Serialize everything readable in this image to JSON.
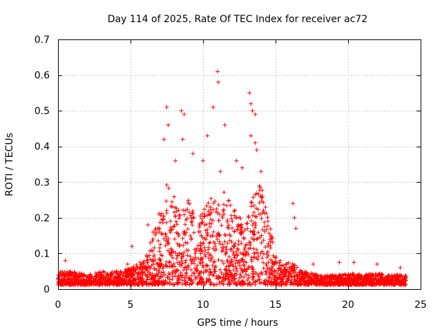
{
  "chart_data": {
    "type": "scatter",
    "title": "Day 114 of 2025, Rate Of TEC Index for receiver ac72",
    "xlabel": "GPS time / hours",
    "ylabel": "ROTI / TECUs",
    "xlim": [
      0,
      25
    ],
    "ylim": [
      0,
      0.7
    ],
    "x_ticks": [
      "0",
      "5",
      "10",
      "15",
      "20",
      "25"
    ],
    "y_ticks": [
      "0",
      "0.1",
      "0.2",
      "0.3",
      "0.4",
      "0.5",
      "0.6",
      "0.7"
    ],
    "x_tick_values": [
      0,
      5,
      10,
      15,
      20,
      25
    ],
    "y_tick_values": [
      0,
      0.1,
      0.2,
      0.3,
      0.4,
      0.5,
      0.6,
      0.7
    ],
    "grid": true,
    "marker": "+",
    "color": "#ff0000",
    "envelope_hours": [
      0,
      1,
      2,
      3,
      4,
      5,
      5.5,
      6,
      6.5,
      7,
      7.5,
      8,
      8.5,
      9,
      9.5,
      10,
      10.5,
      11,
      11.5,
      12,
      12.5,
      13,
      13.5,
      14,
      14.5,
      15,
      15.5,
      16,
      16.5,
      17,
      18,
      19,
      20,
      21,
      22,
      23,
      24
    ],
    "envelope_roti": [
      0.05,
      0.05,
      0.04,
      0.05,
      0.05,
      0.06,
      0.07,
      0.09,
      0.16,
      0.22,
      0.3,
      0.27,
      0.24,
      0.25,
      0.2,
      0.22,
      0.26,
      0.25,
      0.28,
      0.24,
      0.2,
      0.22,
      0.27,
      0.3,
      0.2,
      0.1,
      0.07,
      0.08,
      0.06,
      0.05,
      0.04,
      0.04,
      0.045,
      0.04,
      0.045,
      0.04,
      0.04
    ],
    "baseline_roti": 0.012,
    "peaks": [
      {
        "x": 0.5,
        "y": 0.08
      },
      {
        "x": 4.8,
        "y": 0.07
      },
      {
        "x": 5.1,
        "y": 0.12
      },
      {
        "x": 6.2,
        "y": 0.18
      },
      {
        "x": 7.3,
        "y": 0.42
      },
      {
        "x": 7.5,
        "y": 0.51
      },
      {
        "x": 7.6,
        "y": 0.46
      },
      {
        "x": 8.1,
        "y": 0.36
      },
      {
        "x": 8.5,
        "y": 0.5
      },
      {
        "x": 8.7,
        "y": 0.49
      },
      {
        "x": 8.6,
        "y": 0.42
      },
      {
        "x": 9.3,
        "y": 0.38
      },
      {
        "x": 10.0,
        "y": 0.36
      },
      {
        "x": 10.3,
        "y": 0.43
      },
      {
        "x": 10.7,
        "y": 0.51
      },
      {
        "x": 11.0,
        "y": 0.61
      },
      {
        "x": 11.05,
        "y": 0.58
      },
      {
        "x": 11.5,
        "y": 0.46
      },
      {
        "x": 11.2,
        "y": 0.33
      },
      {
        "x": 12.3,
        "y": 0.36
      },
      {
        "x": 12.7,
        "y": 0.34
      },
      {
        "x": 13.2,
        "y": 0.55
      },
      {
        "x": 13.3,
        "y": 0.52
      },
      {
        "x": 13.4,
        "y": 0.5
      },
      {
        "x": 13.6,
        "y": 0.49
      },
      {
        "x": 13.3,
        "y": 0.43
      },
      {
        "x": 13.6,
        "y": 0.41
      },
      {
        "x": 13.7,
        "y": 0.39
      },
      {
        "x": 14.0,
        "y": 0.33
      },
      {
        "x": 16.2,
        "y": 0.24
      },
      {
        "x": 16.3,
        "y": 0.2
      },
      {
        "x": 16.4,
        "y": 0.17
      },
      {
        "x": 17.6,
        "y": 0.07
      },
      {
        "x": 19.4,
        "y": 0.075
      },
      {
        "x": 20.4,
        "y": 0.075
      },
      {
        "x": 22.0,
        "y": 0.07
      },
      {
        "x": 23.6,
        "y": 0.06
      }
    ]
  }
}
